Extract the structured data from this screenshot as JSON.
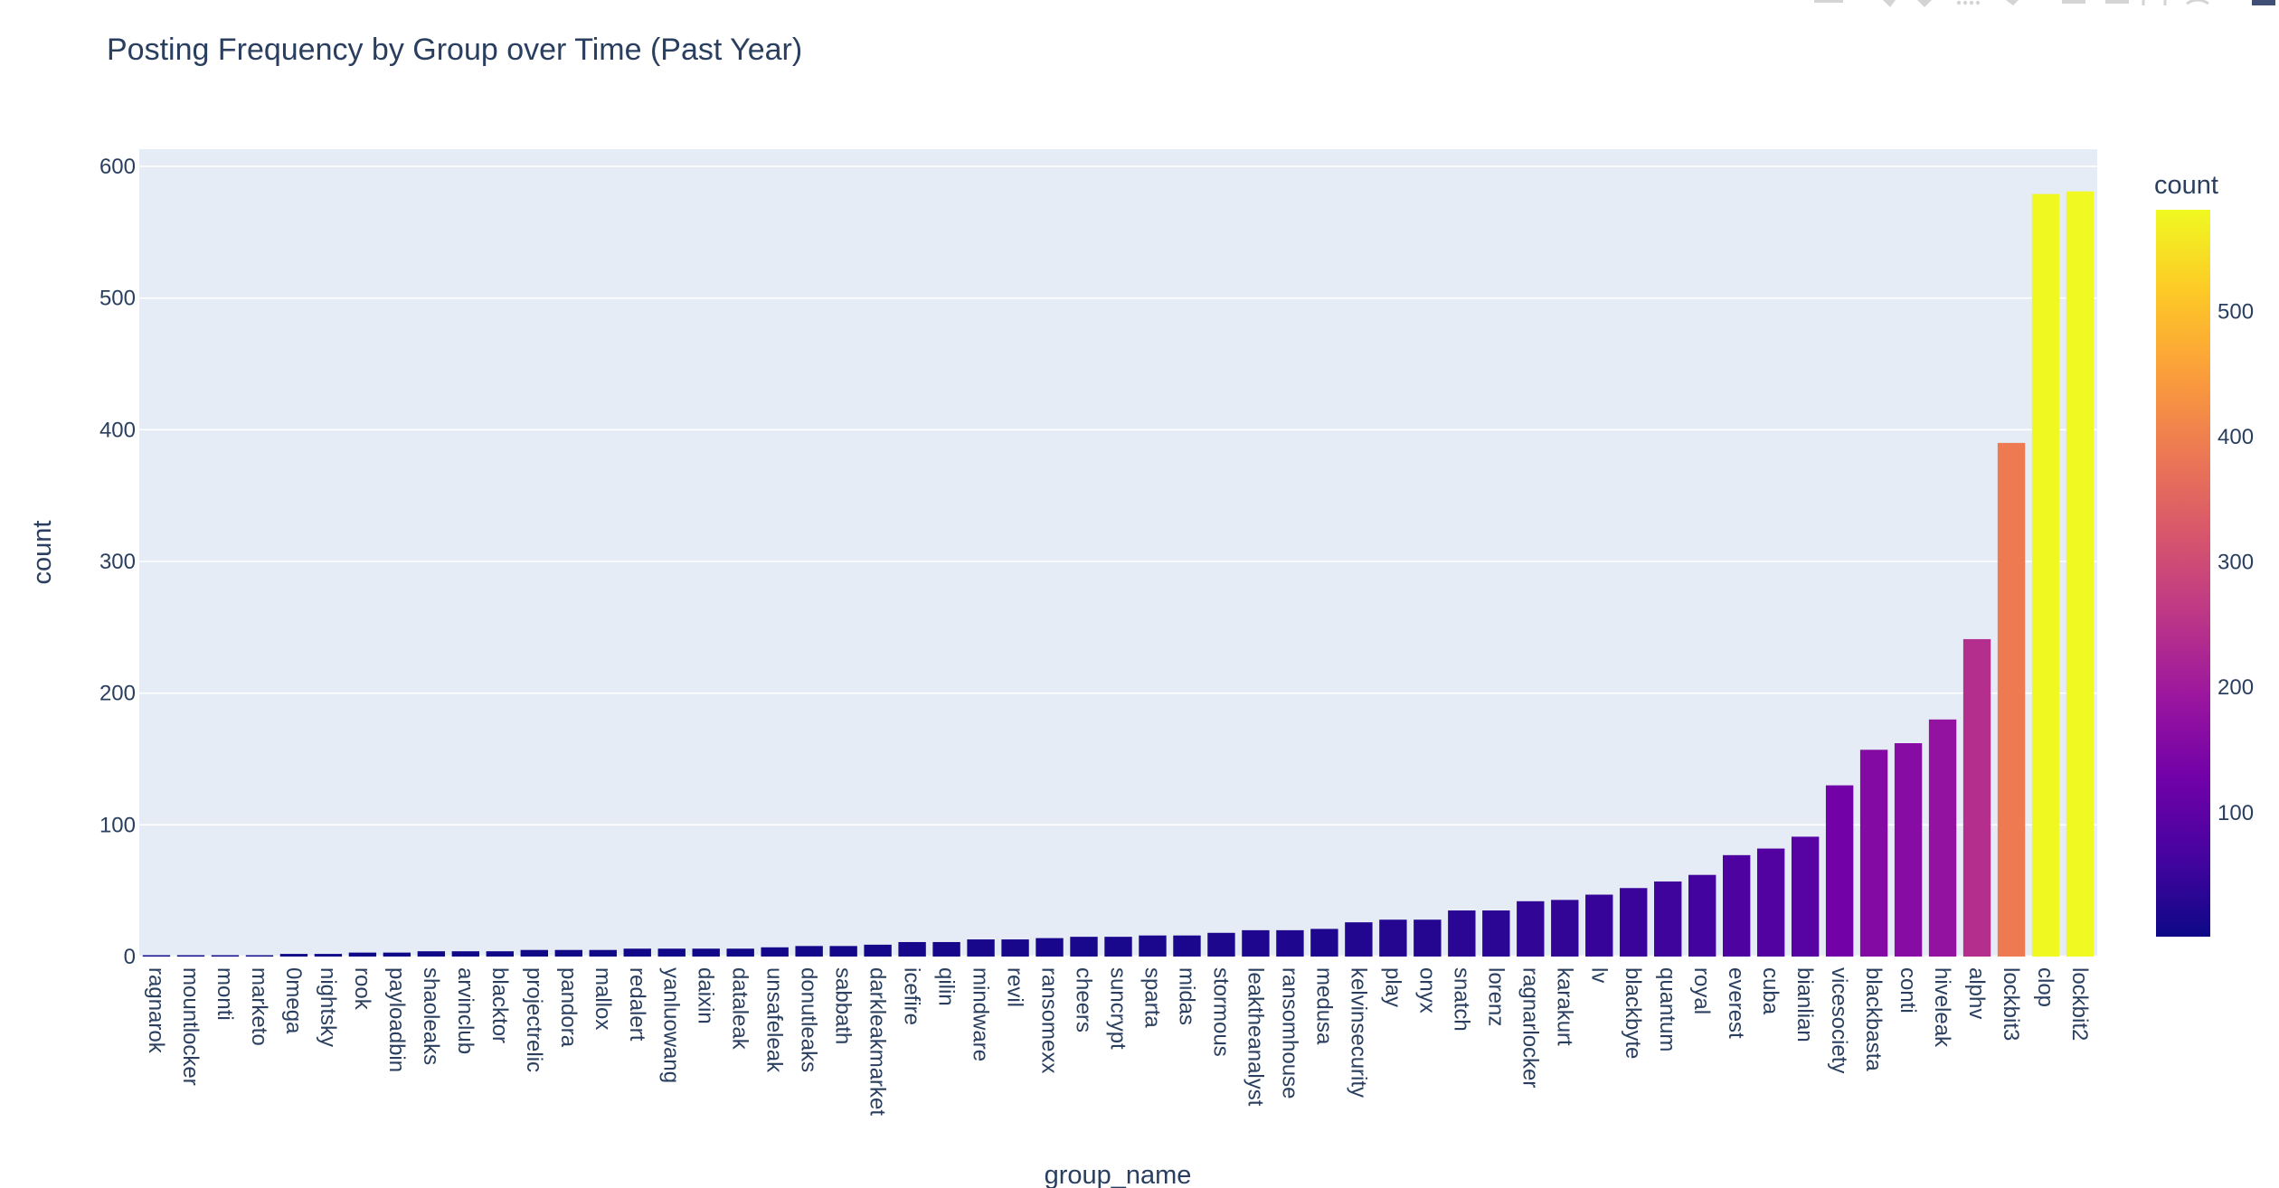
{
  "chart_data": {
    "type": "bar",
    "title": "Posting Frequency by Group over Time (Past Year)",
    "xlabel": "group_name",
    "ylabel": "count",
    "ylim": [
      0,
      600
    ],
    "yticks": [
      0,
      100,
      200,
      300,
      400,
      500,
      600
    ],
    "ytick_labels": [
      "0",
      "100",
      "200",
      "300",
      "400",
      "500",
      "600"
    ],
    "grid": true,
    "categories": [
      "ragnarok",
      "mountlocker",
      "monti",
      "marketo",
      "0mega",
      "nightsky",
      "rook",
      "payloadbin",
      "shaoleaks",
      "arvinclub",
      "blacktor",
      "projectrelic",
      "pandora",
      "mallox",
      "redalert",
      "yanluowang",
      "daixin",
      "dataleak",
      "unsafeleak",
      "donutleaks",
      "sabbath",
      "darkleakmarket",
      "icefire",
      "qilin",
      "mindware",
      "revil",
      "ransomexx",
      "cheers",
      "suncrypt",
      "sparta",
      "midas",
      "stormous",
      "leaktheanalyst",
      "ransomhouse",
      "medusa",
      "kelvinsecurity",
      "play",
      "onyx",
      "snatch",
      "lorenz",
      "ragnarlocker",
      "karakurt",
      "lv",
      "blackbyte",
      "quantum",
      "royal",
      "everest",
      "cuba",
      "bianlian",
      "vicesociety",
      "blackbasta",
      "conti",
      "hiveleak",
      "alphv",
      "lockbit3",
      "clop",
      "lockbit2"
    ],
    "values": [
      1,
      1,
      1,
      1,
      2,
      2,
      3,
      3,
      4,
      4,
      4,
      5,
      5,
      5,
      6,
      6,
      6,
      6,
      7,
      8,
      8,
      9,
      11,
      11,
      13,
      13,
      14,
      15,
      15,
      16,
      16,
      18,
      20,
      20,
      21,
      26,
      28,
      28,
      35,
      35,
      42,
      43,
      47,
      52,
      57,
      62,
      77,
      82,
      91,
      130,
      157,
      162,
      180,
      241,
      390,
      579,
      581
    ],
    "colorbar": {
      "title": "count",
      "ticks": [
        100,
        200,
        300,
        400,
        500
      ],
      "tick_labels": [
        "100",
        "200",
        "300",
        "400",
        "500"
      ],
      "min": 1,
      "max": 581
    },
    "colorscale": [
      "#0d0887",
      "#46039f",
      "#7201a8",
      "#9c179e",
      "#bd3786",
      "#d8576b",
      "#ed7953",
      "#fb9f3a",
      "#fdca26",
      "#f0f921"
    ],
    "plot_bgcolor": "#e5ecf6",
    "text_color": "#2a3f5f"
  }
}
